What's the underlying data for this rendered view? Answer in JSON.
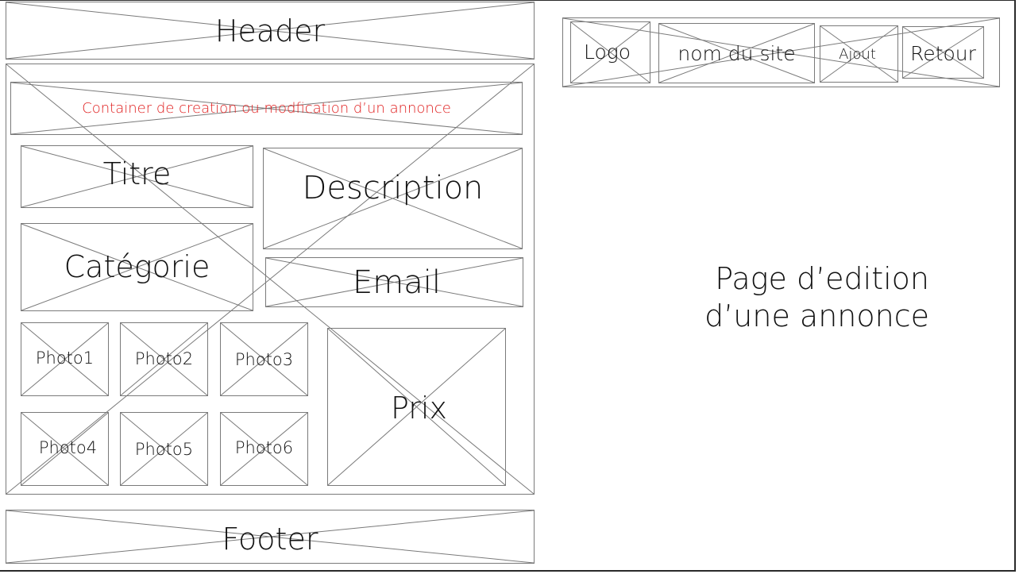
{
  "wireframe": {
    "header": "Header",
    "container": "Container de creation ou modfication d’un annonce",
    "fields": {
      "titre": "Titre",
      "description": "Description",
      "categorie": "Catégorie",
      "email": "Email",
      "prix": "Prix"
    },
    "photos": [
      "Photo1",
      "Photo2",
      "Photo3",
      "Photo4",
      "Photo5",
      "Photo6"
    ],
    "footer": "Footer"
  },
  "header_detail": {
    "logo": "Logo",
    "site_name": "nom du site",
    "ajout": "Ajout",
    "retour": "Retour"
  },
  "page_title": {
    "line1": "Page d’edition",
    "line2": "d’une annonce"
  },
  "colors": {
    "container_label": "#e02020"
  }
}
